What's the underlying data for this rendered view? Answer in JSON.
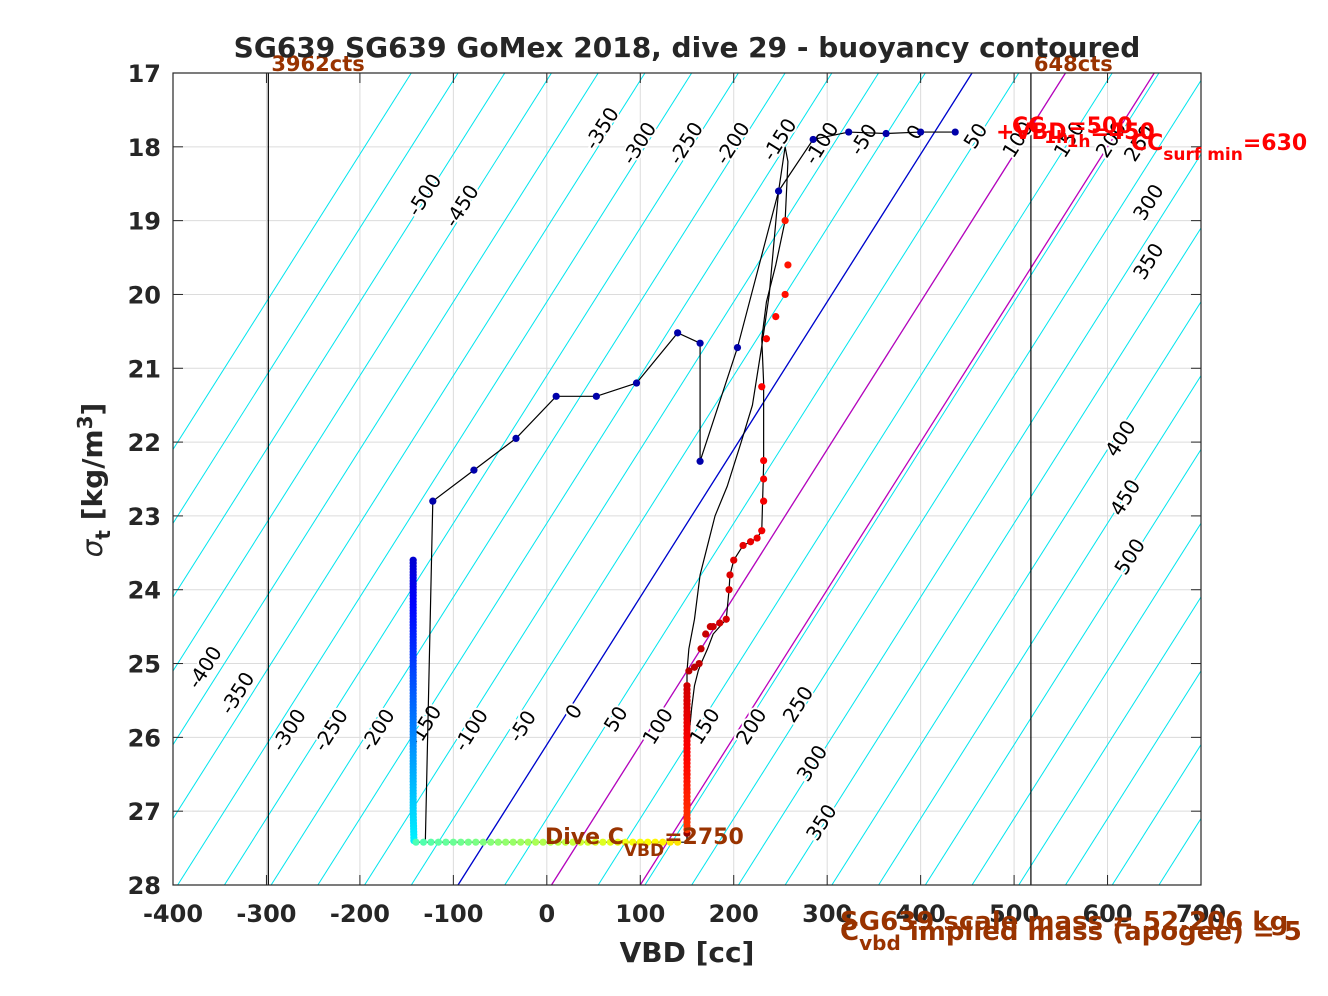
{
  "chart_data": {
    "type": "scatter",
    "title": "SG639 SG639 GoMex 2018, dive 29 - buoyancy contoured",
    "xlabel": "VBD [cc]",
    "ylabel_main": "σ",
    "ylabel_sub": "t",
    "ylabel_unit": " [kg/m",
    "ylabel_exp": "3",
    "ylabel_close": "]",
    "xlim": [
      -400,
      700
    ],
    "ylim": [
      17,
      28
    ],
    "y_reversed": true,
    "grid": true,
    "xticks": [
      -400,
      -300,
      -200,
      -100,
      0,
      100,
      200,
      300,
      400,
      500,
      600,
      700
    ],
    "yticks": [
      17,
      18,
      19,
      20,
      21,
      22,
      23,
      24,
      25,
      26,
      27,
      28
    ],
    "xtick_labels": [
      "-400",
      "-300",
      "-200",
      "-100",
      "0",
      "100",
      "200",
      "300",
      "400",
      "500",
      "600",
      "700"
    ],
    "ytick_labels": [
      "17",
      "18",
      "19",
      "20",
      "21",
      "22",
      "23",
      "24",
      "25",
      "26",
      "27",
      "28"
    ],
    "contours": {
      "color": "#00e5ee",
      "levels": [
        -600,
        -550,
        -500,
        -450,
        -400,
        -350,
        -300,
        -250,
        -200,
        -150,
        -100,
        -50,
        0,
        50,
        100,
        150,
        200,
        250,
        300,
        350,
        400,
        450,
        500,
        550,
        600,
        650,
        700,
        750,
        800,
        850,
        900
      ],
      "labels": [
        {
          "text": "-500",
          "x": -125,
          "y": 18.7
        },
        {
          "text": "-450",
          "x": -85,
          "y": 18.85
        },
        {
          "text": "-350",
          "x": 65,
          "y": 17.8
        },
        {
          "text": "-300",
          "x": 105,
          "y": 18.0
        },
        {
          "text": "-250",
          "x": 155,
          "y": 18.0
        },
        {
          "text": "-200",
          "x": 205,
          "y": 18.0
        },
        {
          "text": "-150",
          "x": 255,
          "y": 17.95
        },
        {
          "text": "-100",
          "x": 300,
          "y": 18.0
        },
        {
          "text": "-50",
          "x": 345,
          "y": 17.95
        },
        {
          "text": "0",
          "x": 400,
          "y": 17.85
        },
        {
          "text": "50",
          "x": 465,
          "y": 17.9
        },
        {
          "text": "100",
          "x": 510,
          "y": 17.95
        },
        {
          "text": "150",
          "x": 565,
          "y": 17.95
        },
        {
          "text": "200",
          "x": 610,
          "y": 17.95
        },
        {
          "text": "250",
          "x": 640,
          "y": 18.0
        },
        {
          "text": "300",
          "x": 650,
          "y": 18.8
        },
        {
          "text": "350",
          "x": 650,
          "y": 19.6
        },
        {
          "text": "400",
          "x": 620,
          "y": 22.0
        },
        {
          "text": "450",
          "x": 625,
          "y": 22.8
        },
        {
          "text": "500",
          "x": 630,
          "y": 23.6
        },
        {
          "text": "-400",
          "x": -360,
          "y": 25.1
        },
        {
          "text": "-350",
          "x": -325,
          "y": 25.45
        },
        {
          "text": "-300",
          "x": -270,
          "y": 25.95
        },
        {
          "text": "-250",
          "x": -225,
          "y": 25.95
        },
        {
          "text": "-200",
          "x": -175,
          "y": 25.95
        },
        {
          "text": "-150",
          "x": -125,
          "y": 25.9
        },
        {
          "text": "-100",
          "x": -75,
          "y": 25.95
        },
        {
          "text": "-50",
          "x": -20,
          "y": 25.9
        },
        {
          "text": "0",
          "x": 35,
          "y": 25.7
        },
        {
          "text": "50",
          "x": 80,
          "y": 25.8
        },
        {
          "text": "100",
          "x": 125,
          "y": 25.9
        },
        {
          "text": "150",
          "x": 175,
          "y": 25.9
        },
        {
          "text": "200",
          "x": 225,
          "y": 25.9
        },
        {
          "text": "250",
          "x": 275,
          "y": 25.6
        },
        {
          "text": "300",
          "x": 290,
          "y": 26.4
        },
        {
          "text": "350",
          "x": 300,
          "y": 27.2
        }
      ]
    },
    "reference_lines": [
      {
        "name": "zero-buoyancy",
        "color": "#0000cc",
        "x_at_ylim": [
          -95,
          455
        ]
      },
      {
        "name": "bound-1",
        "color": "#bb00bb",
        "x_at_ylim": [
          5,
          555
        ]
      },
      {
        "name": "bound-2",
        "color": "#bb00bb",
        "x_at_ylim": [
          100,
          650
        ]
      }
    ],
    "vertical_lines": [
      {
        "x": -298,
        "label": "3962cts"
      },
      {
        "x": 518,
        "label": "648cts"
      }
    ],
    "dive_path": {
      "x": [
        437,
        400,
        363,
        323,
        285,
        248,
        238,
        230,
        220,
        208,
        203,
        193,
        180,
        172,
        164,
        158,
        152,
        150,
        150,
        150,
        150,
        150,
        150,
        150
      ],
      "y": [
        17.8,
        17.8,
        17.82,
        17.8,
        17.9,
        18.6,
        20.0,
        20.7,
        21.5,
        22.0,
        22.2,
        22.6,
        23.0,
        23.4,
        23.8,
        24.4,
        24.8,
        25.1,
        25.5,
        26.0,
        26.5,
        26.9,
        27.2,
        27.42
      ]
    },
    "climb_path": {
      "x": [
        -143,
        -130,
        -122,
        -78,
        -33,
        10,
        53,
        96,
        140,
        164,
        164,
        204,
        248,
        255,
        258,
        255,
        245,
        235,
        230,
        232,
        232,
        230,
        225,
        218,
        210,
        200,
        196,
        195,
        192,
        185,
        178,
        172,
        165,
        162,
        158,
        155,
        152,
        150,
        150,
        150,
        -143
      ],
      "y": [
        27.42,
        27.42,
        22.8,
        22.38,
        21.95,
        21.38,
        21.38,
        21.2,
        20.52,
        20.66,
        22.26,
        20.72,
        18.6,
        18.0,
        18.2,
        19.0,
        19.6,
        20.1,
        20.6,
        21.2,
        22.3,
        23.2,
        23.3,
        23.35,
        23.4,
        23.6,
        23.8,
        24.0,
        24.4,
        24.5,
        24.6,
        24.8,
        25.0,
        25.1,
        25.3,
        25.6,
        26.0,
        27.0,
        27.4,
        27.42,
        27.42
      ]
    },
    "descent_markers": {
      "x": [
        437,
        400,
        363,
        323,
        285,
        248
      ],
      "y": [
        17.8,
        17.8,
        17.82,
        17.8,
        17.9,
        18.6
      ]
    },
    "climb_markers": {
      "x": [
        -122,
        -78,
        -33,
        10,
        53,
        96,
        140,
        164,
        164,
        204
      ],
      "y": [
        22.8,
        22.38,
        21.95,
        21.38,
        21.38,
        21.2,
        20.52,
        20.66,
        22.26,
        20.72
      ]
    },
    "annotations": {
      "dive_c_main": "Dive C",
      "dive_c_sub": "VBD",
      "dive_c_val": "=2750",
      "cc_surf_main": "CC",
      "cc_surf_sub": "surf min",
      "cc_surf_val": "=630",
      "cc_top_main": "CC",
      "cc_top_sub": "1h",
      "cc_top_val": "=500",
      "vbd_main": "+VBD",
      "vbd_sub": "1h",
      "vbd_val": "=450",
      "footer_1": "SG639 scale mass = 52.206 kg",
      "footer_2_main": "C",
      "footer_2_sub": "vbd",
      "footer_2_rest": " implied mass (apogee) = 5"
    }
  }
}
